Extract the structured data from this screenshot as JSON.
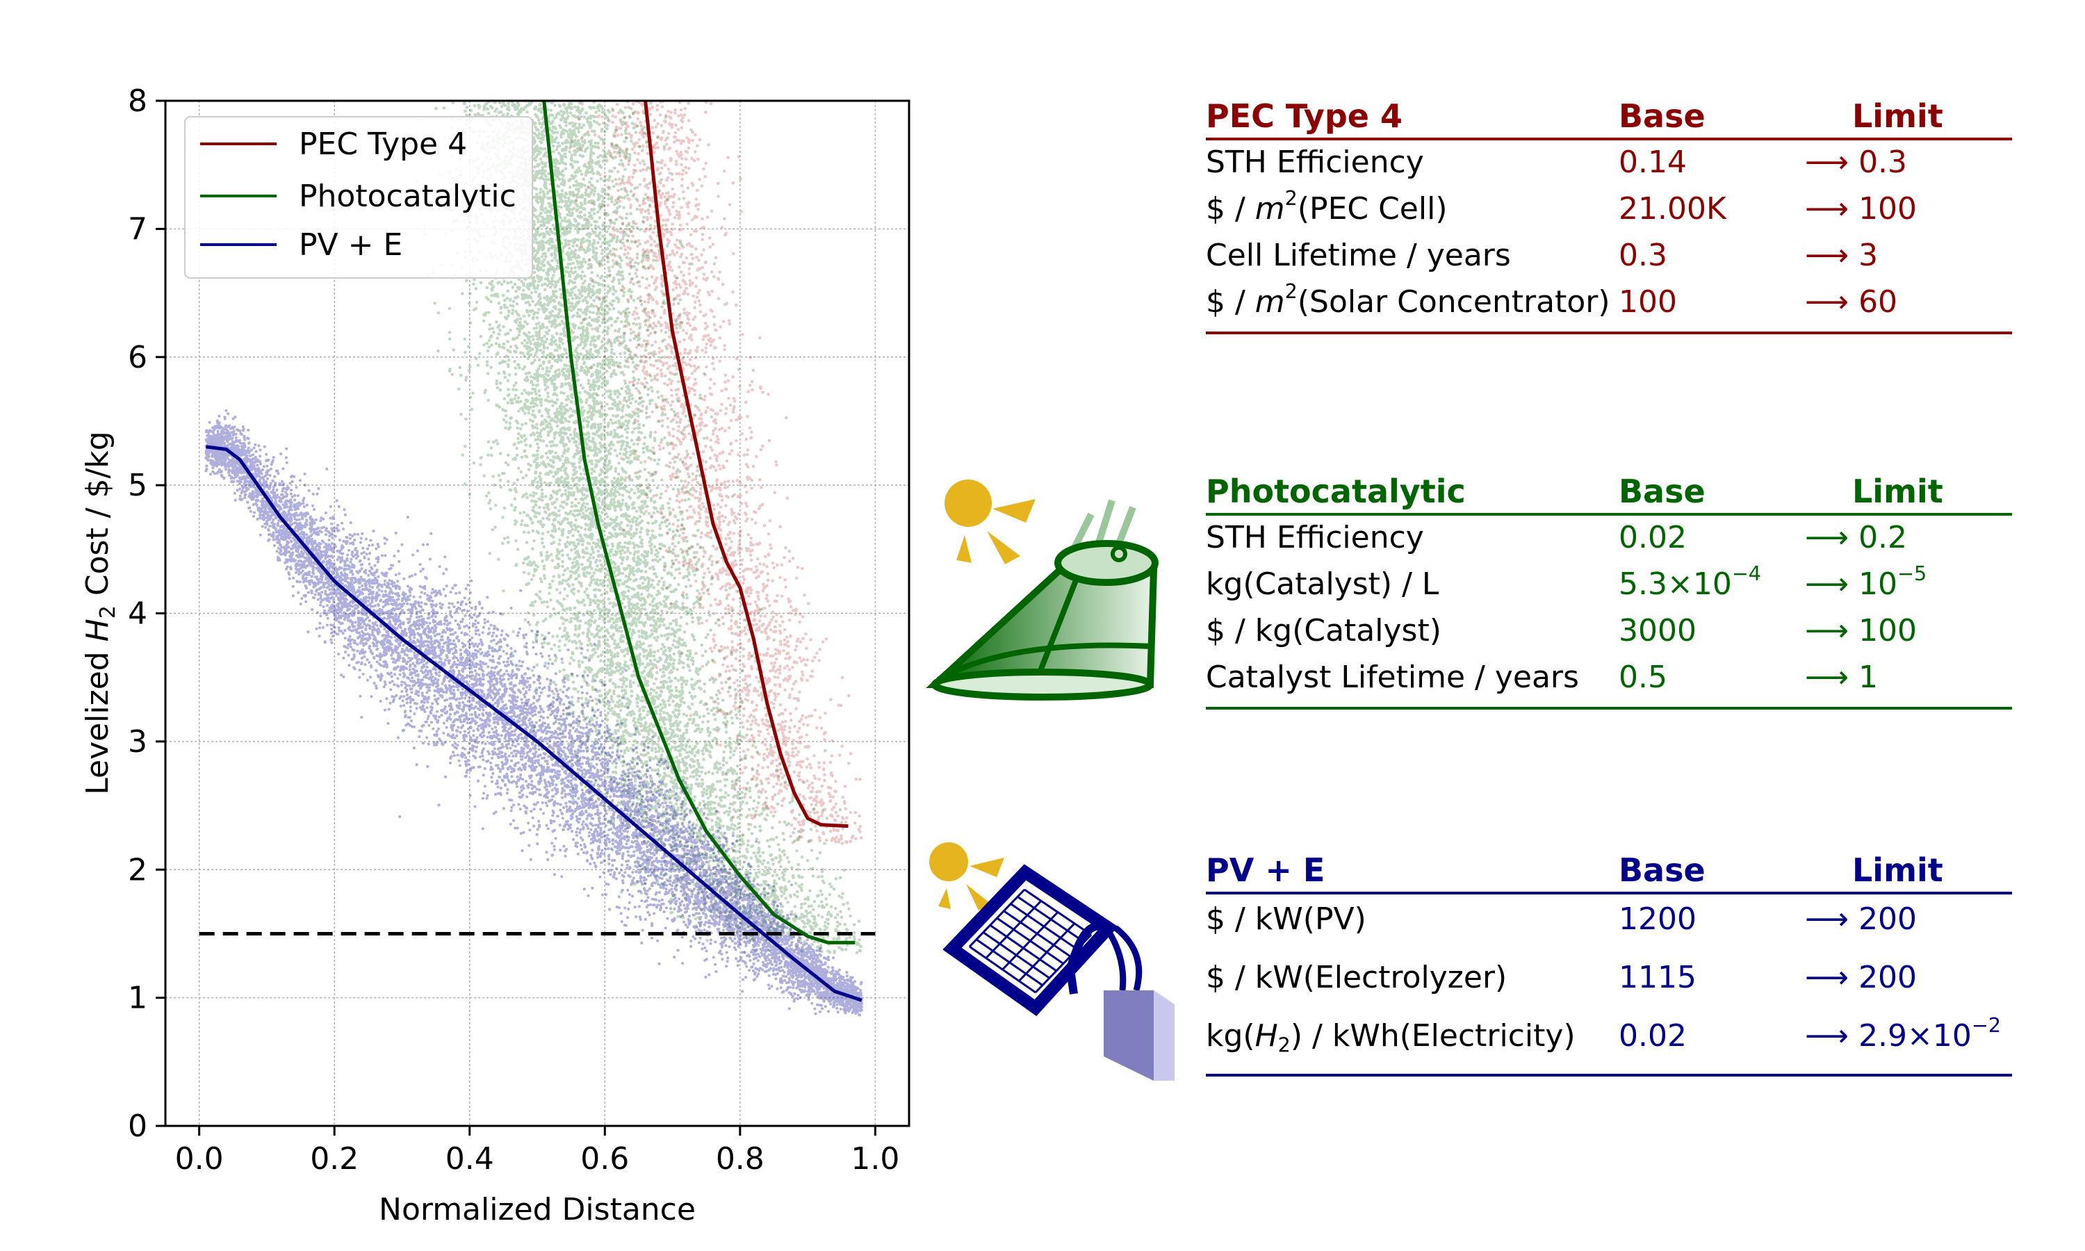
{
  "chart_data": {
    "type": "scatter",
    "title": "",
    "xlabel": "Normalized Distance",
    "ylabel_parts": [
      "Levelized ",
      "H",
      "2",
      " Cost / $/kg"
    ],
    "xlim": [
      -0.05,
      1.05
    ],
    "ylim": [
      0,
      8
    ],
    "xticks": [
      0.0,
      0.2,
      0.4,
      0.6,
      0.8,
      1.0
    ],
    "xtick_labels": [
      "0.0",
      "0.2",
      "0.4",
      "0.6",
      "0.8",
      "1.0"
    ],
    "yticks": [
      0,
      1,
      2,
      3,
      4,
      5,
      6,
      7,
      8
    ],
    "ytick_labels": [
      "0",
      "1",
      "2",
      "3",
      "4",
      "5",
      "6",
      "7",
      "8"
    ],
    "grid": true,
    "legend_position": "top-left",
    "target_line": {
      "y": 1.5,
      "x_range": [
        0.0,
        1.0
      ],
      "style": "dashed",
      "color": "#000000"
    },
    "series": [
      {
        "name": "PEC Type 4",
        "color": "#8b0000",
        "line": [
          [
            0.66,
            8.0
          ],
          [
            0.67,
            7.5
          ],
          [
            0.68,
            7.0
          ],
          [
            0.69,
            6.6
          ],
          [
            0.7,
            6.2
          ],
          [
            0.72,
            5.7
          ],
          [
            0.74,
            5.2
          ],
          [
            0.76,
            4.7
          ],
          [
            0.78,
            4.4
          ],
          [
            0.8,
            4.2
          ],
          [
            0.82,
            3.8
          ],
          [
            0.84,
            3.3
          ],
          [
            0.86,
            2.9
          ],
          [
            0.88,
            2.6
          ],
          [
            0.9,
            2.4
          ],
          [
            0.92,
            2.35
          ],
          [
            0.96,
            2.34
          ]
        ]
      },
      {
        "name": "Photocatalytic",
        "color": "#006400",
        "line": [
          [
            0.51,
            8.0
          ],
          [
            0.52,
            7.5
          ],
          [
            0.53,
            7.0
          ],
          [
            0.54,
            6.5
          ],
          [
            0.55,
            6.0
          ],
          [
            0.56,
            5.6
          ],
          [
            0.57,
            5.2
          ],
          [
            0.59,
            4.7
          ],
          [
            0.61,
            4.3
          ],
          [
            0.63,
            3.9
          ],
          [
            0.65,
            3.5
          ],
          [
            0.68,
            3.1
          ],
          [
            0.71,
            2.7
          ],
          [
            0.75,
            2.3
          ],
          [
            0.8,
            1.95
          ],
          [
            0.85,
            1.65
          ],
          [
            0.9,
            1.48
          ],
          [
            0.93,
            1.43
          ],
          [
            0.97,
            1.43
          ]
        ]
      },
      {
        "name": "PV + E",
        "color": "#00008b",
        "line": [
          [
            0.01,
            5.3
          ],
          [
            0.04,
            5.28
          ],
          [
            0.06,
            5.2
          ],
          [
            0.08,
            5.05
          ],
          [
            0.12,
            4.75
          ],
          [
            0.2,
            4.25
          ],
          [
            0.3,
            3.8
          ],
          [
            0.4,
            3.4
          ],
          [
            0.5,
            3.0
          ],
          [
            0.6,
            2.55
          ],
          [
            0.7,
            2.1
          ],
          [
            0.8,
            1.65
          ],
          [
            0.88,
            1.3
          ],
          [
            0.94,
            1.05
          ],
          [
            0.98,
            0.98
          ]
        ]
      }
    ]
  },
  "tables": {
    "pec": {
      "title": "PEC Type 4",
      "base_label": "Base",
      "limit_label": "Limit",
      "color": "#8b0000",
      "rows": [
        {
          "label": "STH Efficiency",
          "base": "0.14",
          "limit": "⟶ 0.3"
        },
        {
          "label_pre": "$ / ",
          "label_var": "m",
          "label_sup": "2",
          "label_post": "(PEC Cell)",
          "base": "21.00K",
          "limit": "⟶ 100"
        },
        {
          "label": "Cell Lifetime / years",
          "base": "0.3",
          "limit": "⟶ 3"
        },
        {
          "label_pre": "$ / ",
          "label_var": "m",
          "label_sup": "2",
          "label_post": "(Solar Concentrator)",
          "base": "100",
          "limit": "⟶ 60"
        }
      ]
    },
    "photocatalytic": {
      "title": "Photocatalytic",
      "base_label": "Base",
      "limit_label": "Limit",
      "color": "#006400",
      "rows": [
        {
          "label": "STH Efficiency",
          "base": "0.02",
          "limit": "⟶ 0.2"
        },
        {
          "label": "kg(Catalyst) / L",
          "base_pre": "5.3×10",
          "base_sup": "−4",
          "limit_pre": "⟶ 10",
          "limit_sup": "−5"
        },
        {
          "label": "$ / kg(Catalyst)",
          "base": "3000",
          "limit": "⟶ 100"
        },
        {
          "label": "Catalyst Lifetime / years",
          "base": "0.5",
          "limit": "⟶ 1"
        }
      ]
    },
    "pv": {
      "title": "PV + E",
      "base_label": "Base",
      "limit_label": "Limit",
      "color": "#00008b",
      "rows": [
        {
          "label": "$ / kW(PV)",
          "base": "1200",
          "limit": "⟶ 200"
        },
        {
          "label": "$ / kW(Electrolyzer)",
          "base": "1115",
          "limit": "⟶ 200"
        },
        {
          "label_pre": "kg(",
          "label_var": "H",
          "label_sub": "2",
          "label_post": ") / kWh(Electricity)",
          "base": "0.02",
          "limit_pre": "⟶ 2.9×10",
          "limit_sup": "−2"
        }
      ]
    }
  },
  "icons": {
    "sun_color": "#e6b41e",
    "photocatalytic_icon": "photocatalyst-reactor-icon",
    "pv_icon": "solar-panel-electrolyzer-icon"
  }
}
